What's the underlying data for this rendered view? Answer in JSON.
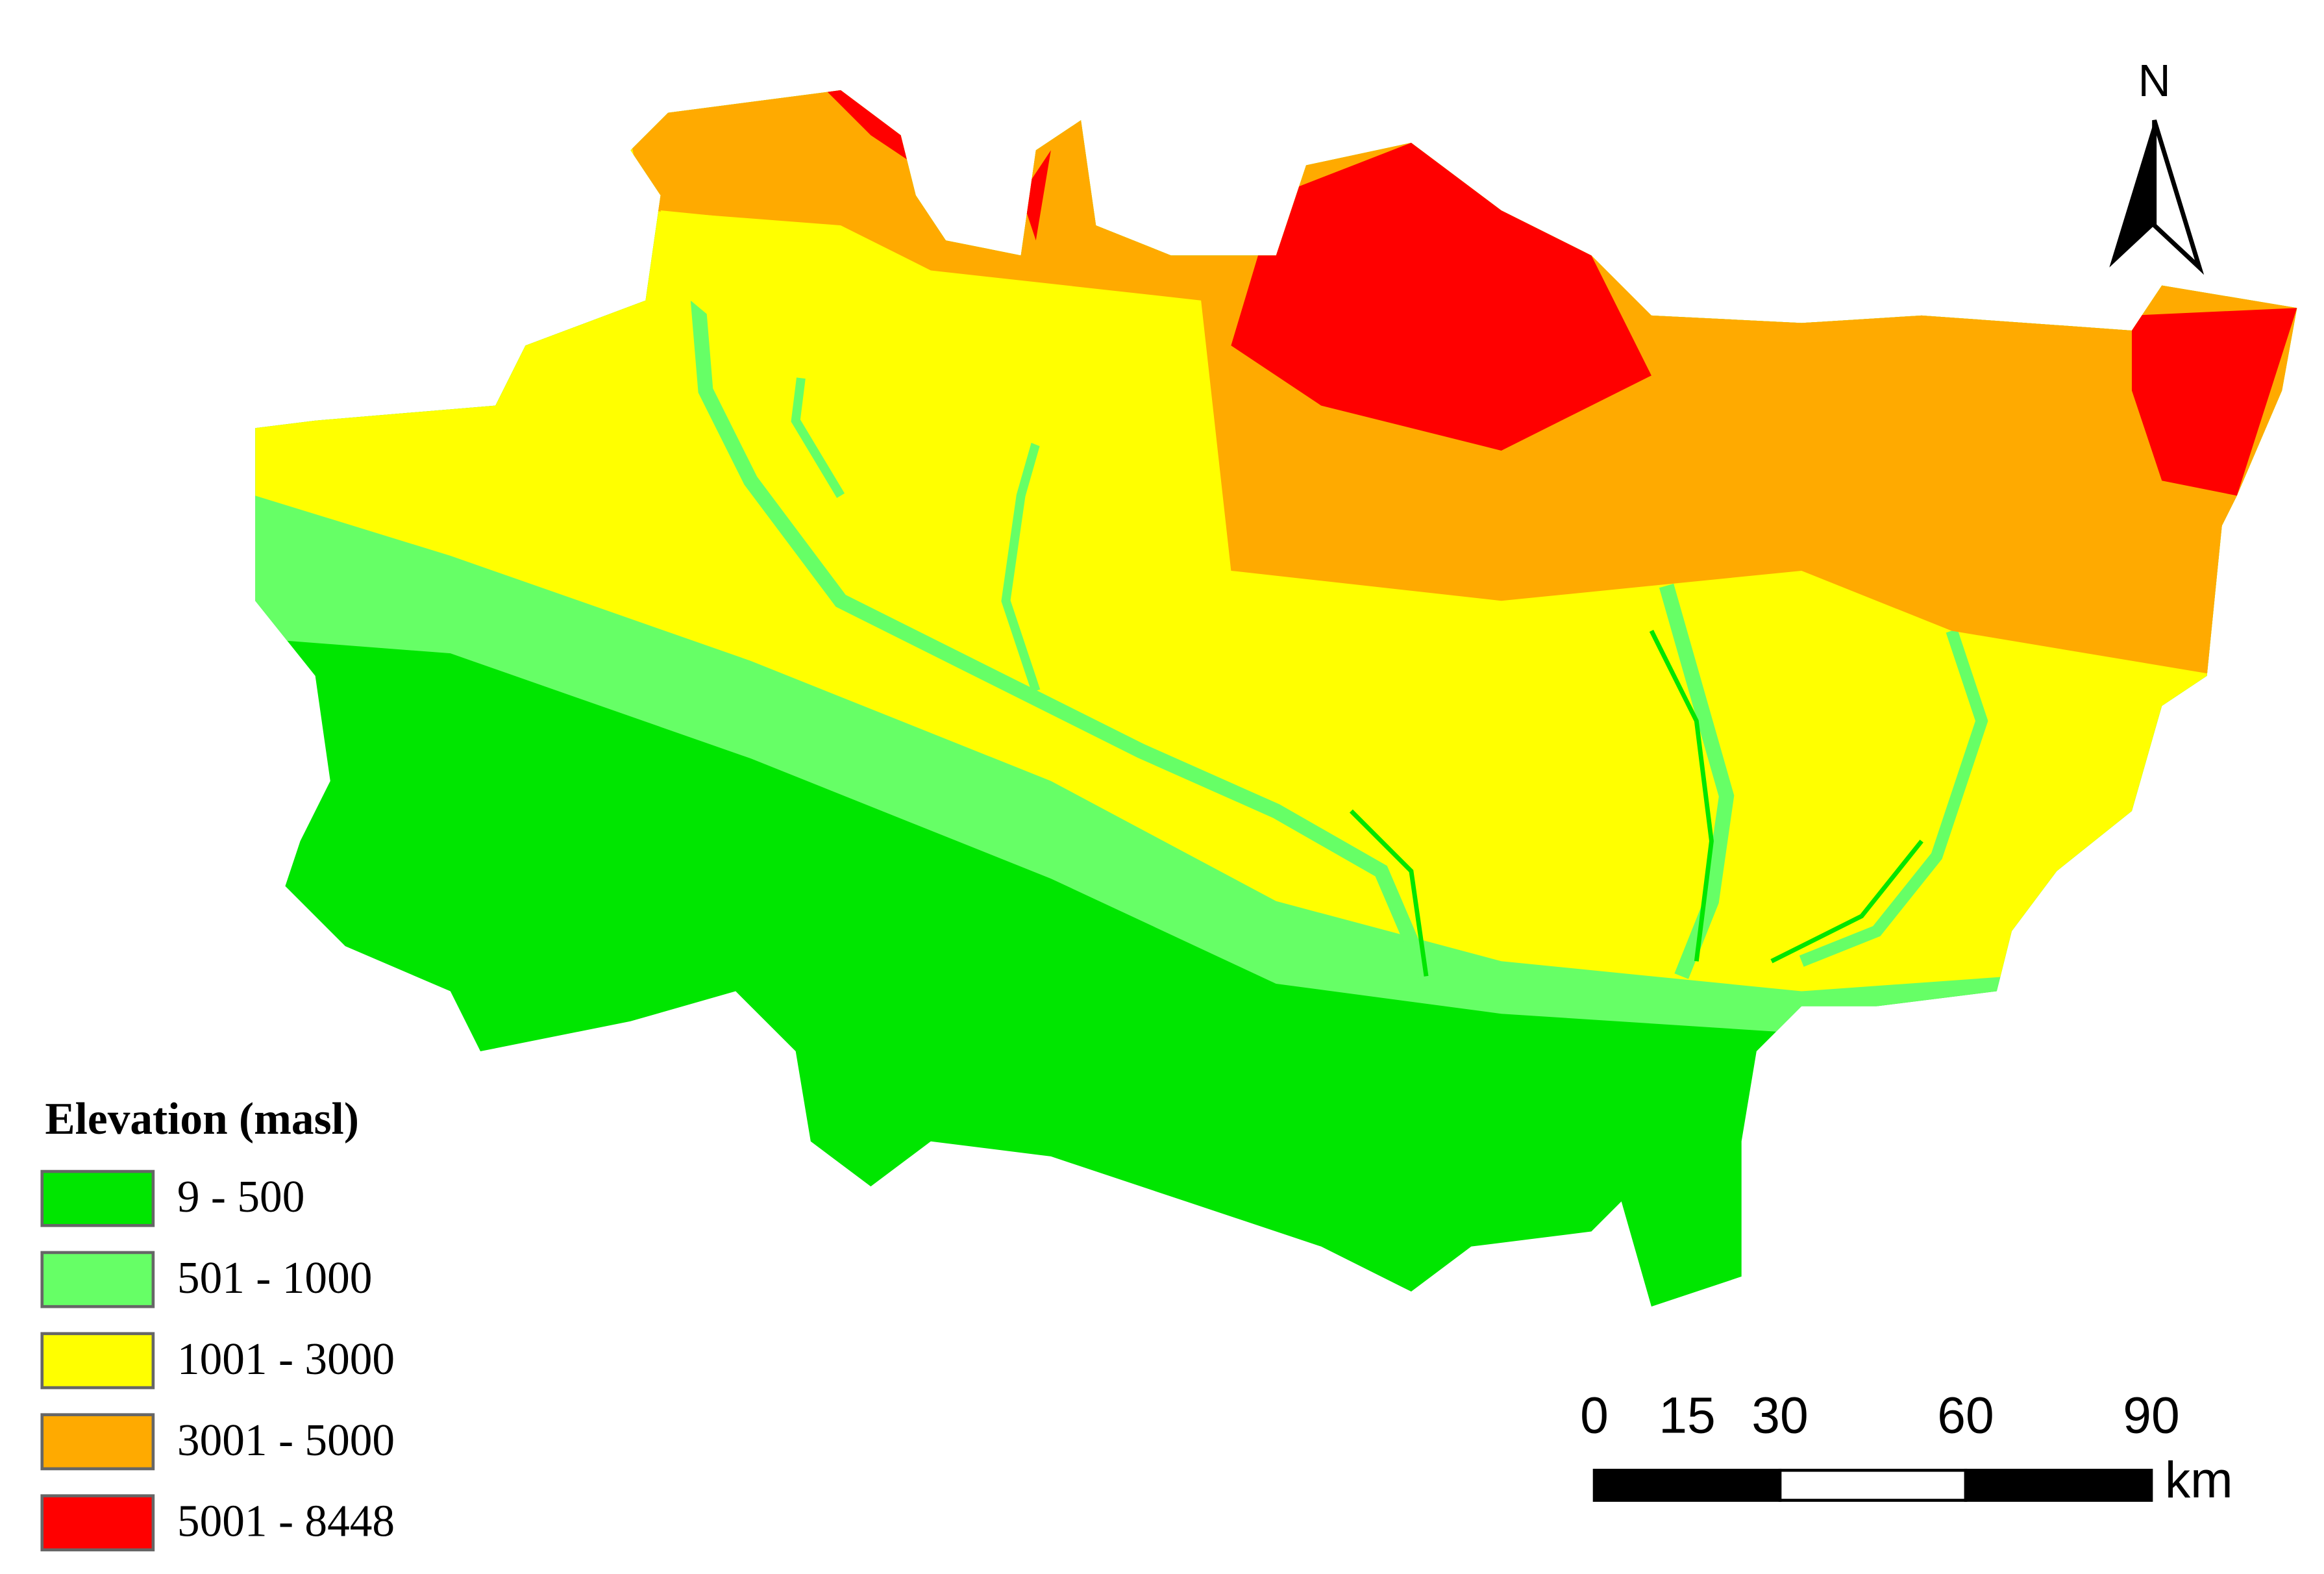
{
  "map": {
    "legend": {
      "title": "Elevation (masl)",
      "items": [
        {
          "label": "9 - 500",
          "color": "#00e600"
        },
        {
          "label": "501 - 1000",
          "color": "#66ff66"
        },
        {
          "label": "1001 - 3000",
          "color": "#ffff00"
        },
        {
          "label": "3001 - 5000",
          "color": "#ffaa00"
        },
        {
          "label": "5001 - 8448",
          "color": "#ff0000"
        }
      ]
    },
    "north_label": "N",
    "scale_bar": {
      "ticks": [
        0,
        15,
        30,
        60,
        90
      ],
      "unit": "km"
    }
  }
}
